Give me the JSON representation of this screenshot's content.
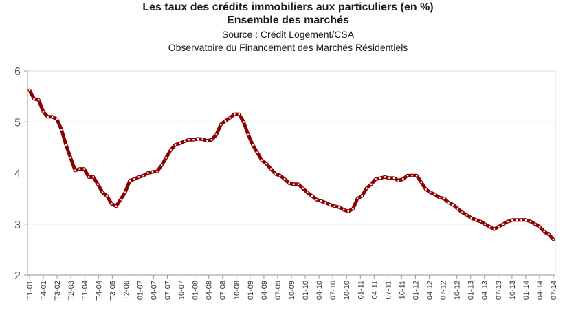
{
  "chart_data": {
    "type": "line",
    "title": "Les taux des crédits immobiliers aux particuliers (en %)",
    "subtitle": "Ensemble des marchés",
    "source": "Source : Crédit Logement/CSA",
    "source2": "Observatoire du Financement des Marchés Résidentiels",
    "ylim": [
      2,
      6
    ],
    "yticks": [
      2,
      3,
      4,
      5,
      6
    ],
    "grid": true,
    "colors": {
      "line": "#8b0000",
      "marker": "#ffffff",
      "axis": "#999999",
      "grid": "#d9d9d9"
    },
    "xticks": [
      "T1-01",
      "T4-01",
      "T3-02",
      "T2-03",
      "T1-04",
      "T4-04",
      "T3-05",
      "T2-06",
      "01-07",
      "04-07",
      "07-07",
      "10-07",
      "01-08",
      "04-08",
      "07-08",
      "10-08",
      "01-09",
      "04-09",
      "07-09",
      "10-09",
      "01-10",
      "04-10",
      "07-10",
      "10-10",
      "01-11",
      "04-11",
      "07-11",
      "10-11",
      "01-12",
      "04-12",
      "07-12",
      "10-12",
      "01-13",
      "04-13",
      "07-13",
      "10-13",
      "01-14",
      "04-14",
      "07-14"
    ],
    "series": [
      {
        "values": [
          5.62,
          5.45,
          5.43,
          5.2,
          5.1,
          5.1,
          5.05,
          4.85,
          4.55,
          4.3,
          4.05,
          4.08,
          4.08,
          3.92,
          3.92,
          3.78,
          3.62,
          3.55,
          3.4,
          3.35,
          3.48,
          3.62,
          3.85,
          3.88,
          3.92,
          3.95,
          4.0,
          4.02,
          4.03,
          4.15,
          4.3,
          4.45,
          4.55,
          4.58,
          4.62,
          4.65,
          4.65,
          4.67,
          4.66,
          4.63,
          4.65,
          4.75,
          4.95,
          5.02,
          5.08,
          5.15,
          5.15,
          5.0,
          4.75,
          4.55,
          4.4,
          4.25,
          4.18,
          4.08,
          3.98,
          3.95,
          3.88,
          3.8,
          3.78,
          3.78,
          3.7,
          3.62,
          3.55,
          3.48,
          3.45,
          3.42,
          3.38,
          3.35,
          3.33,
          3.28,
          3.25,
          3.3,
          3.5,
          3.55,
          3.7,
          3.78,
          3.88,
          3.9,
          3.92,
          3.9,
          3.9,
          3.85,
          3.88,
          3.95,
          3.95,
          3.95,
          3.82,
          3.68,
          3.62,
          3.58,
          3.52,
          3.5,
          3.42,
          3.38,
          3.3,
          3.23,
          3.18,
          3.12,
          3.08,
          3.05,
          3.0,
          2.95,
          2.9,
          2.95,
          3.0,
          3.05,
          3.08,
          3.08,
          3.08,
          3.08,
          3.05,
          3.0,
          2.95,
          2.85,
          2.8,
          2.7
        ]
      }
    ]
  }
}
